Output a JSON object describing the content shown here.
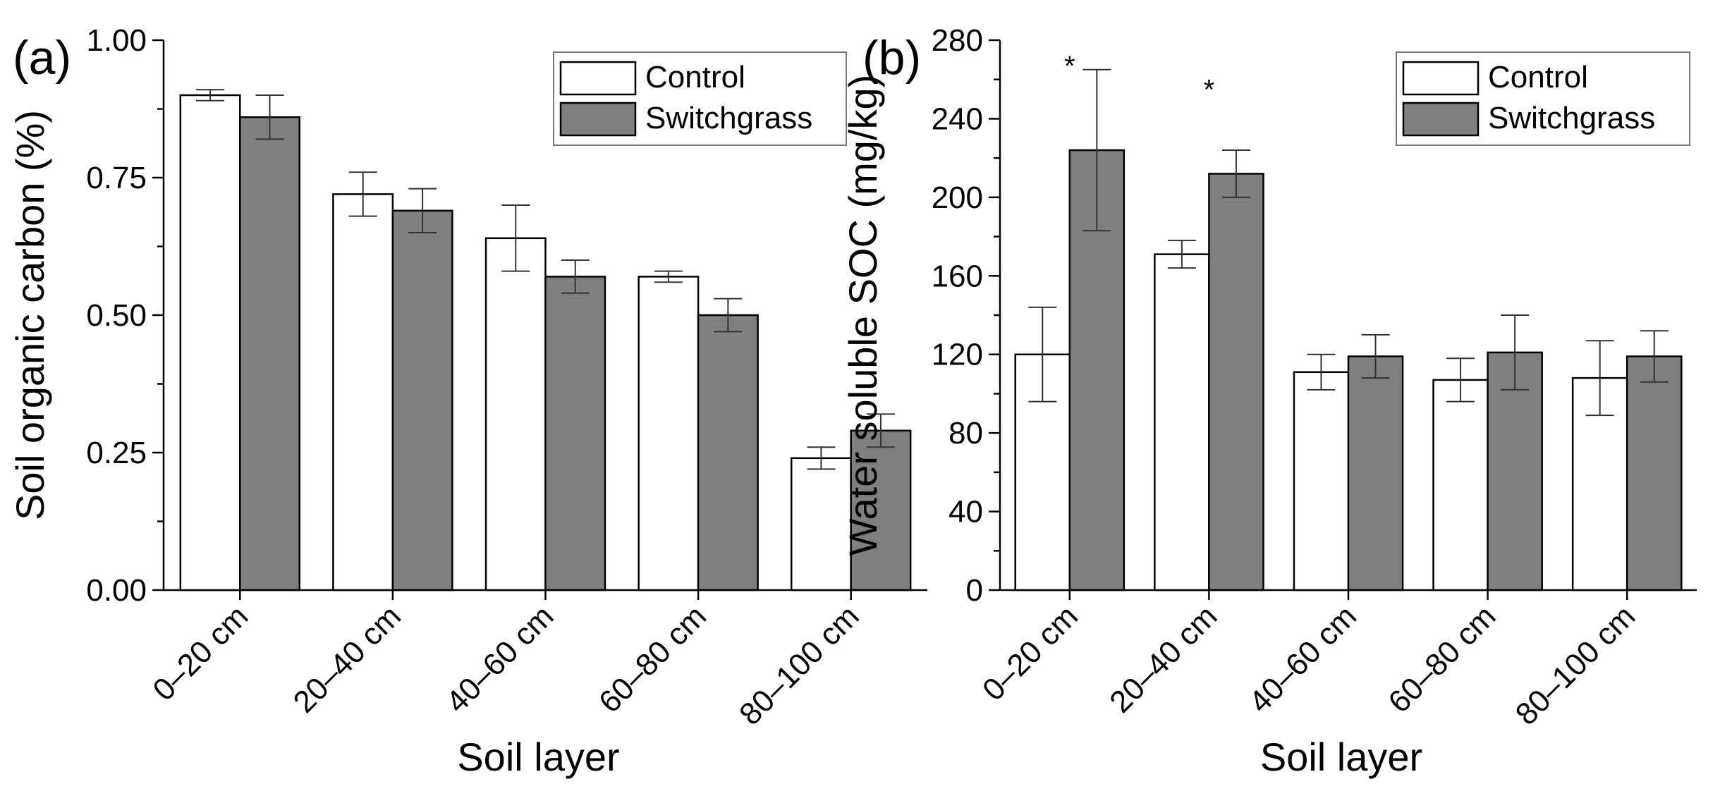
{
  "colors": {
    "control_fill": "#ffffff",
    "switchgrass_fill": "#7f7f7f",
    "stroke": "#000000"
  },
  "chart_data": [
    {
      "type": "bar",
      "panel_label": "(a)",
      "xlabel": "Soil layer",
      "ylabel": "Soil organic carbon (%)",
      "categories": [
        "0–20 cm",
        "20–40 cm",
        "40–60 cm",
        "60–80 cm",
        "80–100 cm"
      ],
      "ylim": [
        0,
        1.0
      ],
      "yticks": [
        "0.00",
        "0.25",
        "0.50",
        "0.75",
        "1.00"
      ],
      "ytick_values": [
        0,
        0.25,
        0.5,
        0.75,
        1.0
      ],
      "series": [
        {
          "name": "Control",
          "values": [
            0.9,
            0.72,
            0.64,
            0.57,
            0.24
          ],
          "errors": [
            0.01,
            0.04,
            0.06,
            0.01,
            0.02
          ]
        },
        {
          "name": "Switchgrass",
          "values": [
            0.86,
            0.69,
            0.57,
            0.5,
            0.29
          ],
          "errors": [
            0.04,
            0.04,
            0.03,
            0.03,
            0.03
          ]
        }
      ],
      "significance": [],
      "legend_position": "top-right"
    },
    {
      "type": "bar",
      "panel_label": "(b)",
      "xlabel": "Soil layer",
      "ylabel": "Water soluble SOC (mg/kg)",
      "categories": [
        "0–20 cm",
        "20–40 cm",
        "40–60 cm",
        "60–80 cm",
        "80–100 cm"
      ],
      "ylim": [
        0,
        280
      ],
      "yticks": [
        "0",
        "40",
        "80",
        "120",
        "160",
        "200",
        "240",
        "280"
      ],
      "ytick_values": [
        0,
        40,
        80,
        120,
        160,
        200,
        240,
        280
      ],
      "series": [
        {
          "name": "Control",
          "values": [
            120,
            171,
            111,
            107,
            108
          ],
          "errors": [
            24,
            7,
            9,
            11,
            19
          ]
        },
        {
          "name": "Switchgrass",
          "values": [
            224,
            212,
            119,
            121,
            119
          ],
          "errors": [
            41,
            12,
            11,
            19,
            13
          ]
        }
      ],
      "significance": [
        {
          "category_index": 0,
          "label": "*",
          "y": 270
        },
        {
          "category_index": 1,
          "label": "*",
          "y": 258
        }
      ],
      "legend_position": "top-right"
    }
  ]
}
